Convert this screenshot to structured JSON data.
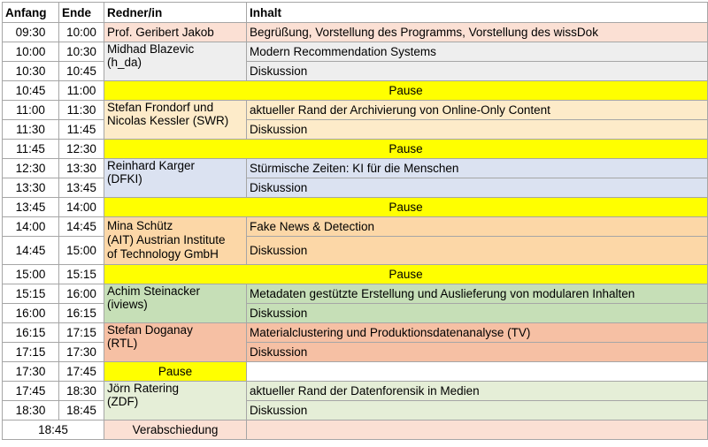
{
  "headers": {
    "start": "Anfang",
    "end": "Ende",
    "speaker": "Redner/in",
    "content": "Inhalt"
  },
  "pause_label": "Pause",
  "discussion_label": "Diskussion",
  "colors": {
    "salmon": "#fbe0d4",
    "gray": "#eeeeee",
    "yellow": "#ffff00",
    "peach": "#fdebc9",
    "blue": "#dbe2f1",
    "orange": "#fcd7a7",
    "green": "#c6dfb7",
    "coral": "#f6c0a4",
    "light_green": "#e5eed7"
  },
  "rows": [
    {
      "start": "09:30",
      "end": "10:00",
      "speaker": "Prof. Geribert Jakob",
      "content": "Begrüßung, Vorstellung des Programms, Vorstellung des wissDok"
    },
    {
      "start": "10:00",
      "end": "10:30",
      "speaker_l1": "Midhad Blazevic",
      "speaker_l2": "(h_da)",
      "content": "Modern Recommendation Systems"
    },
    {
      "start": "10:30",
      "end": "10:45",
      "content": "Diskussion"
    },
    {
      "start": "10:45",
      "end": "11:00"
    },
    {
      "start": "11:00",
      "end": "11:30",
      "speaker_l1": "Stefan Frondorf und",
      "speaker_l2": "Nicolas Kessler (SWR)",
      "content": "aktueller Rand der Archivierung von Online-Only Content"
    },
    {
      "start": "11:30",
      "end": "11:45",
      "content": "Diskussion"
    },
    {
      "start": "11:45",
      "end": "12:30"
    },
    {
      "start": "12:30",
      "end": "13:30",
      "speaker_l1": "Reinhard Karger",
      "speaker_l2": "(DFKI)",
      "content": "Stürmische Zeiten: KI für die Menschen"
    },
    {
      "start": "13:30",
      "end": "13:45",
      "content": "Diskussion"
    },
    {
      "start": "13:45",
      "end": "14:00"
    },
    {
      "start": "14:00",
      "end": "14:45",
      "speaker_l1": "Mina Schütz",
      "speaker_l2": "(AIT) Austrian Institute",
      "speaker_l3": "of Technology GmbH",
      "content": "Fake News & Detection"
    },
    {
      "start": "14:45",
      "end": "15:00",
      "content": "Diskussion"
    },
    {
      "start": "15:00",
      "end": "15:15"
    },
    {
      "start": "15:15",
      "end": "16:00",
      "speaker_l1": "Achim Steinacker",
      "speaker_l2": "(iviews)",
      "content": "Metadaten gestützte Erstellung und Auslieferung von modularen Inhalten"
    },
    {
      "start": "16:00",
      "end": "16:15",
      "content": "Diskussion"
    },
    {
      "start": "16:15",
      "end": "17:15",
      "speaker_l1": "Stefan Doganay",
      "speaker_l2": "(RTL)",
      "content": "Materialclustering und Produktionsdatenanalyse (TV)"
    },
    {
      "start": "17:15",
      "end": "17:30",
      "content": "Diskussion"
    },
    {
      "start": "17:30",
      "end": "17:45"
    },
    {
      "start": "17:45",
      "end": "18:30",
      "speaker_l1": "Jörn Ratering",
      "speaker_l2": "(ZDF)",
      "content": "aktueller Rand der Datenforensik in Medien"
    },
    {
      "start": "18:30",
      "end": "18:45",
      "content": "Diskussion"
    },
    {
      "start": "18:45",
      "speaker": "Verabschiedung"
    }
  ]
}
